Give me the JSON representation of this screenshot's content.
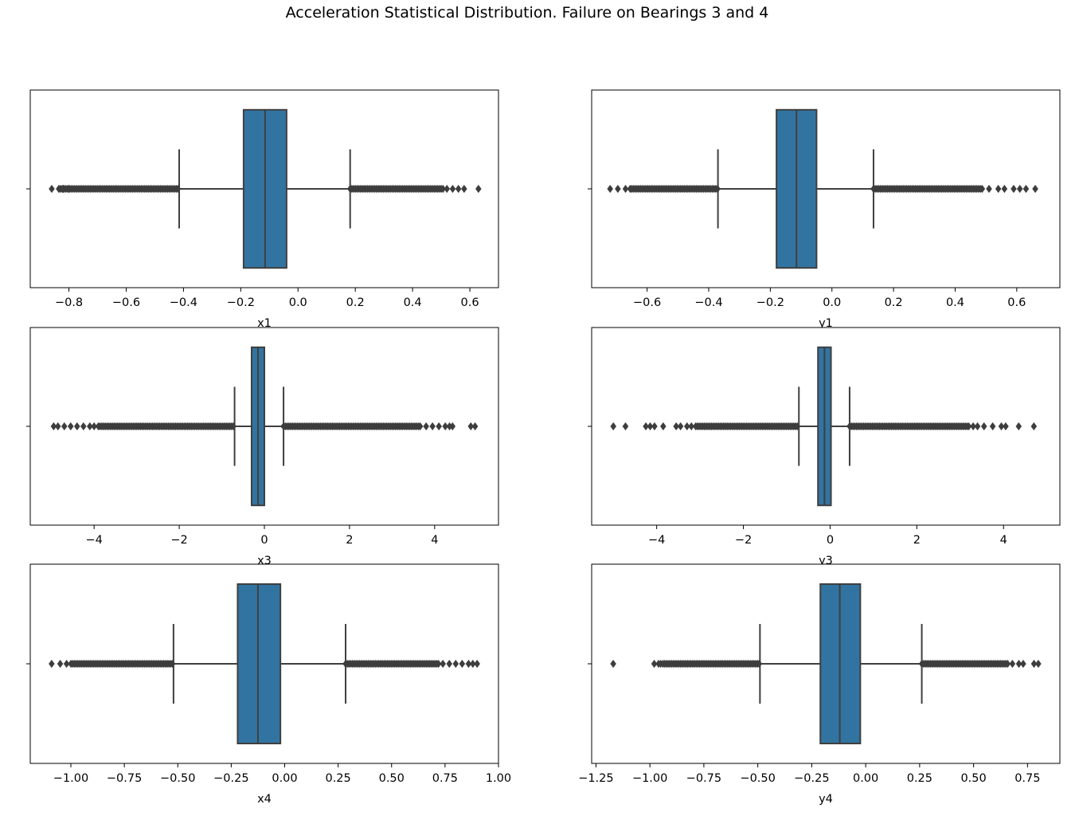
{
  "title": "Acceleration Statistical Distribution. Failure on Bearings 3 and 4",
  "colors": {
    "box_fill": "#3274a1",
    "line": "#3f3f3f",
    "flier": "#3d3d3d",
    "axes_edge": "#000000",
    "background": "#ffffff"
  },
  "chart_data": [
    {
      "type": "boxplot",
      "orientation": "horizontal",
      "xlabel": "x1",
      "xlim": [
        -0.935,
        0.7
      ],
      "xticks": [
        -0.8,
        -0.6,
        -0.4,
        -0.2,
        0.0,
        0.2,
        0.4,
        0.6
      ],
      "xtick_labels": [
        "−0.8",
        "−0.6",
        "−0.4",
        "−0.2",
        "0.0",
        "0.2",
        "0.4",
        "0.6"
      ],
      "box": {
        "whisker_low": -0.415,
        "q1": -0.19,
        "median": -0.115,
        "q3": -0.04,
        "whisker_high": 0.182
      },
      "outliers_low": {
        "min": -0.86,
        "dense_min": -0.835,
        "values": [
          -0.86,
          -0.835,
          -0.82,
          -0.8
        ]
      },
      "outliers_high": {
        "max": 0.63,
        "dense_max": 0.51,
        "values": [
          0.52,
          0.54,
          0.56,
          0.58,
          0.63
        ]
      }
    },
    {
      "type": "boxplot",
      "orientation": "horizontal",
      "xlabel": "y1",
      "xlim": [
        -0.78,
        0.74
      ],
      "xticks": [
        -0.6,
        -0.4,
        -0.2,
        0.0,
        0.2,
        0.4,
        0.6
      ],
      "xtick_labels": [
        "−0.6",
        "−0.4",
        "−0.2",
        "0.0",
        "0.2",
        "0.4",
        "0.6"
      ],
      "box": {
        "whisker_low": -0.37,
        "q1": -0.18,
        "median": -0.115,
        "q3": -0.05,
        "whisker_high": 0.135
      },
      "outliers_low": {
        "min": -0.72,
        "dense_min": -0.65,
        "values": [
          -0.72,
          -0.695,
          -0.67,
          -0.655
        ]
      },
      "outliers_high": {
        "max": 0.66,
        "dense_max": 0.49,
        "values": [
          0.51,
          0.54,
          0.56,
          0.59,
          0.61,
          0.63,
          0.66
        ]
      }
    },
    {
      "type": "boxplot",
      "orientation": "horizontal",
      "xlabel": "x3",
      "xlim": [
        -5.5,
        5.5
      ],
      "xticks": [
        -4,
        -2,
        0,
        2,
        4
      ],
      "xtick_labels": [
        "−4",
        "−2",
        "0",
        "2",
        "4"
      ],
      "box": {
        "whisker_low": -0.7,
        "q1": -0.3,
        "median": -0.15,
        "q3": 0.0,
        "whisker_high": 0.45
      },
      "outliers_low": {
        "min": -4.95,
        "dense_min": -3.9,
        "values": [
          -4.95,
          -4.85,
          -4.7,
          -4.55,
          -4.4,
          -4.25,
          -4.1,
          -4.0
        ]
      },
      "outliers_high": {
        "max": 4.95,
        "dense_max": 3.7,
        "values": [
          3.8,
          3.95,
          4.1,
          4.25,
          4.35,
          4.42,
          4.85,
          4.95
        ]
      }
    },
    {
      "type": "boxplot",
      "orientation": "horizontal",
      "xlabel": "y3",
      "xlim": [
        -5.5,
        5.3
      ],
      "xticks": [
        -4,
        -2,
        0,
        2,
        4
      ],
      "xtick_labels": [
        "−4",
        "−2",
        "0",
        "2",
        "4"
      ],
      "box": {
        "whisker_low": -0.72,
        "q1": -0.28,
        "median": -0.13,
        "q3": 0.02,
        "whisker_high": 0.45
      },
      "outliers_low": {
        "min": -5.0,
        "dense_min": -3.1,
        "values": [
          -5.0,
          -4.72,
          -4.25,
          -4.15,
          -4.05,
          -3.85,
          -3.55,
          -3.45,
          -3.3,
          -3.2
        ]
      },
      "outliers_high": {
        "max": 4.7,
        "dense_max": 3.2,
        "values": [
          3.3,
          3.4,
          3.55,
          3.75,
          3.95,
          4.05,
          4.35,
          4.7
        ]
      }
    },
    {
      "type": "boxplot",
      "orientation": "horizontal",
      "xlabel": "x4",
      "xlim": [
        -1.19,
        1.0
      ],
      "xticks": [
        -1.0,
        -0.75,
        -0.5,
        -0.25,
        0.0,
        0.25,
        0.5,
        0.75,
        1.0
      ],
      "xtick_labels": [
        "−1.00",
        "−0.75",
        "−0.50",
        "−0.25",
        "0.00",
        "0.25",
        "0.50",
        "0.75",
        "1.00"
      ],
      "box": {
        "whisker_low": -0.52,
        "q1": -0.22,
        "median": -0.125,
        "q3": -0.02,
        "whisker_high": 0.285
      },
      "outliers_low": {
        "min": -1.09,
        "dense_min": -1.0,
        "values": [
          -1.09,
          -1.05,
          -1.02
        ]
      },
      "outliers_high": {
        "max": 0.9,
        "dense_max": 0.72,
        "values": [
          0.74,
          0.77,
          0.8,
          0.83,
          0.86,
          0.88,
          0.9
        ]
      }
    },
    {
      "type": "boxplot",
      "orientation": "horizontal",
      "xlabel": "y4",
      "xlim": [
        -1.27,
        0.9
      ],
      "xticks": [
        -1.25,
        -1.0,
        -0.75,
        -0.5,
        -0.25,
        0.0,
        0.25,
        0.5,
        0.75
      ],
      "xtick_labels": [
        "−1.25",
        "−1.00",
        "−0.75",
        "−0.50",
        "−0.25",
        "0.00",
        "0.25",
        "0.50",
        "0.75"
      ],
      "box": {
        "whisker_low": -0.49,
        "q1": -0.21,
        "median": -0.12,
        "q3": -0.025,
        "whisker_high": 0.26
      },
      "outliers_low": {
        "min": -1.17,
        "dense_min": -0.94,
        "values": [
          -1.17,
          -0.98,
          -0.96,
          -0.95
        ]
      },
      "outliers_high": {
        "max": 0.8,
        "dense_max": 0.66,
        "values": [
          0.68,
          0.71,
          0.73,
          0.78,
          0.8
        ]
      }
    }
  ]
}
